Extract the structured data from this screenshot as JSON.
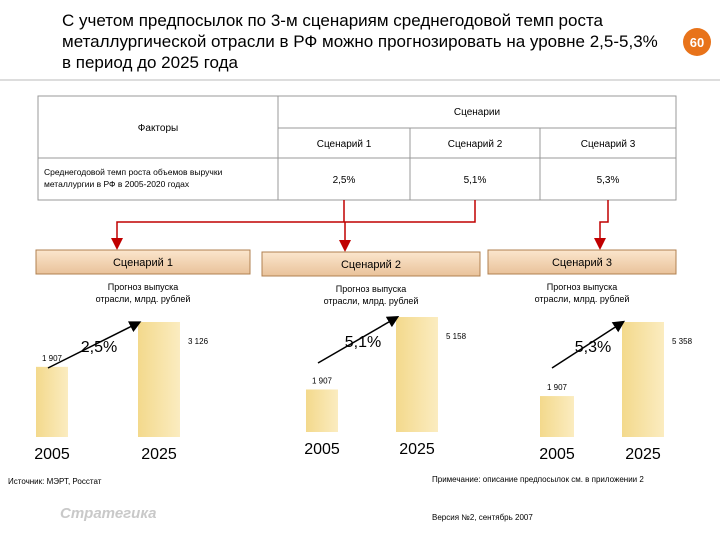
{
  "header": {
    "title": "С учетом предпосылок по 3-м сценариям среднегодовой темп роста металлургической отрасли в РФ можно прогнозировать на уровне 2,5-5,3% в период до 2025 года",
    "page_number": "60"
  },
  "table": {
    "group_header": "Сценарии",
    "factor_header": "Факторы",
    "columns": [
      "Сценарий 1",
      "Сценарий 2",
      "Сценарий 3"
    ],
    "rows": [
      {
        "factor": "Среднегодовой темп роста объемов выручки металлургии в РФ в 2005-2020 годах",
        "values": [
          "2,5%",
          "5,1%",
          "5,3%"
        ]
      }
    ]
  },
  "scenarios": [
    {
      "title": "Сценарий 1",
      "subtitle": "Прогноз выпуска отрасли, млрд. рублей",
      "growth": "2,5%",
      "categories": [
        "2005",
        "2025"
      ],
      "values": [
        1907,
        3126
      ],
      "value_labels": [
        "1 907",
        "3 126"
      ]
    },
    {
      "title": "Сценарий 2",
      "subtitle": "Прогноз выпуска отрасли, млрд. рублей",
      "growth": "5,1%",
      "categories": [
        "2005",
        "2025"
      ],
      "values": [
        1907,
        5158
      ],
      "value_labels": [
        "1 907",
        "5 158"
      ]
    },
    {
      "title": "Сценарий 3",
      "subtitle": "Прогноз выпуска отрасли, млрд. рублей",
      "growth": "5,3%",
      "categories": [
        "2005",
        "2025"
      ],
      "values": [
        1907,
        5358
      ],
      "value_labels": [
        "1 907",
        "5 358"
      ]
    }
  ],
  "footer": {
    "source": "Источник: МЭРТ, Росстат",
    "note": "Примечание: описание предпосылок см. в приложении 2",
    "version": "Версия №2, сентябрь 2007",
    "logo": "Стратегика"
  }
}
